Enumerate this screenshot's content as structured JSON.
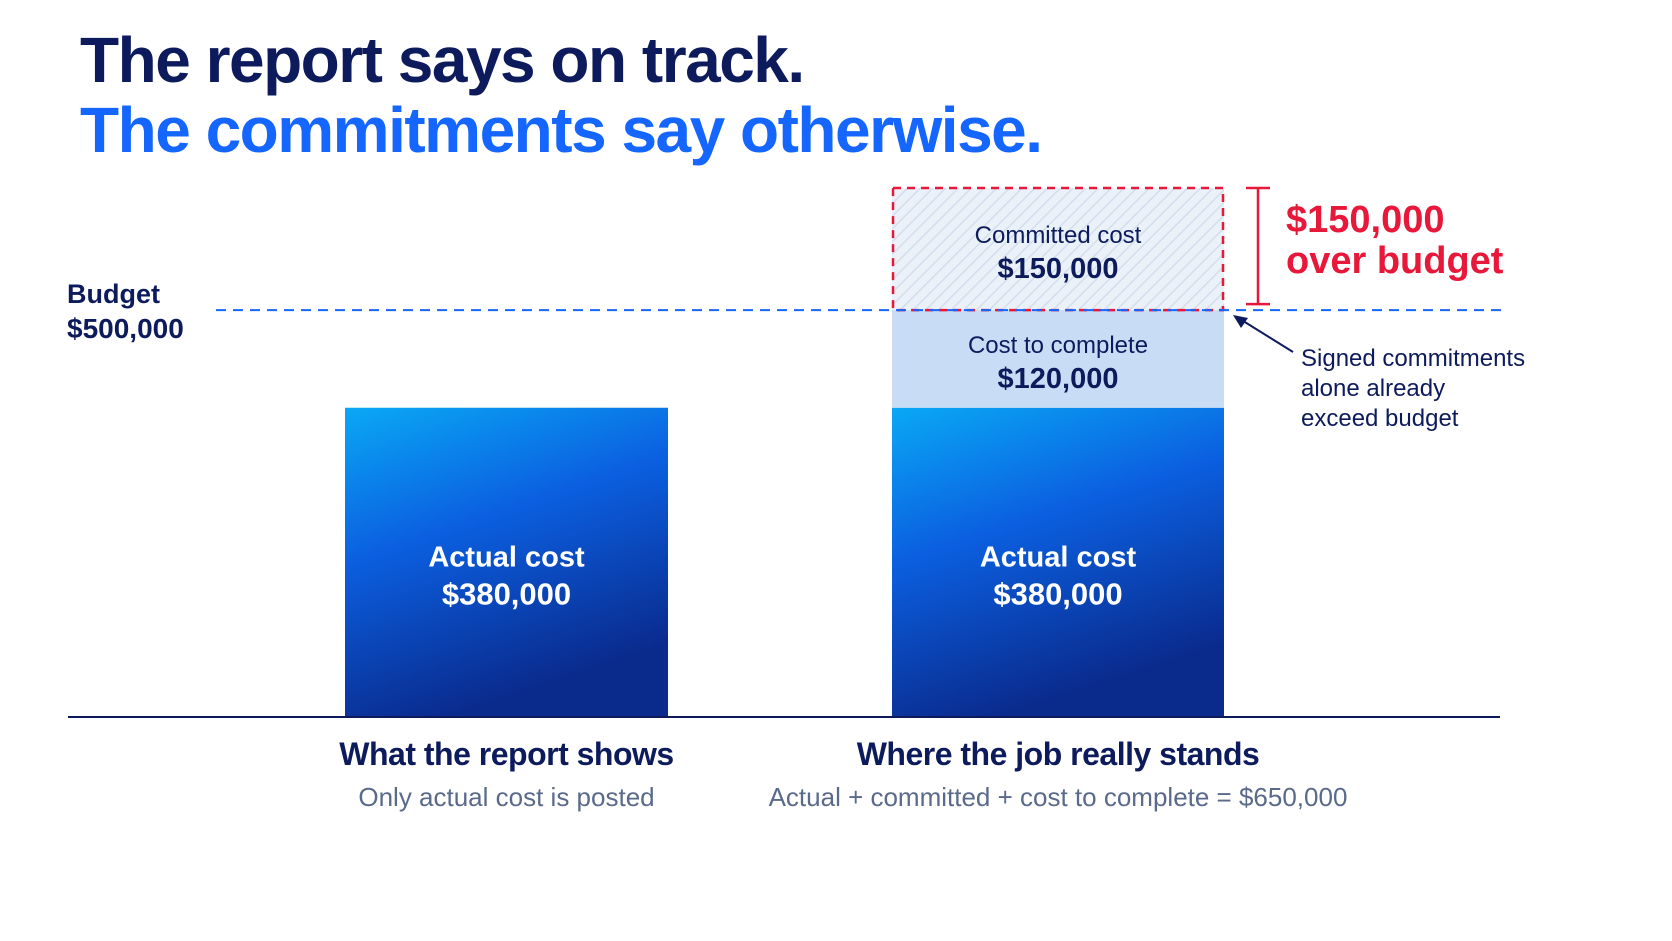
{
  "headline": {
    "line1": "The report says on track.",
    "line2": "The commitments say otherwise."
  },
  "colors": {
    "navy": "#0d1b5c",
    "accent_blue": "#1565ff",
    "bar_top": "#0aa8f5",
    "bar_mid": "#0b5fe0",
    "bar_bottom": "#0a2a8c",
    "cost_to_complete_fill": "#c8dcf5",
    "committed_hatch": "#dbe6f3",
    "over_budget_red": "#e8183a",
    "subtext_gray": "#5a6a8a"
  },
  "chart_data": {
    "type": "bar",
    "stacked": true,
    "ylim": [
      0,
      650000
    ],
    "reference_line": {
      "label": "Budget",
      "value_label": "$500,000",
      "value": 500000,
      "style": "dashed"
    },
    "categories": [
      {
        "title": "What the report shows",
        "subtitle": "Only actual cost is posted"
      },
      {
        "title": "Where the job really stands",
        "subtitle": "Actual + committed + cost to complete = $650,000"
      }
    ],
    "series": [
      {
        "name": "Actual cost",
        "values": [
          380000,
          380000
        ],
        "labels": [
          "$380,000",
          "$380,000"
        ]
      },
      {
        "name": "Cost to complete",
        "values": [
          0,
          120000
        ],
        "labels": [
          "",
          "$120,000"
        ]
      },
      {
        "name": "Committed cost",
        "values": [
          0,
          150000
        ],
        "labels": [
          "",
          "$150,000"
        ]
      }
    ],
    "annotations": {
      "over_budget": {
        "line1": "$150,000",
        "line2": "over budget"
      },
      "callout": [
        "Signed commitments",
        "alone already",
        "exceed budget"
      ]
    }
  }
}
